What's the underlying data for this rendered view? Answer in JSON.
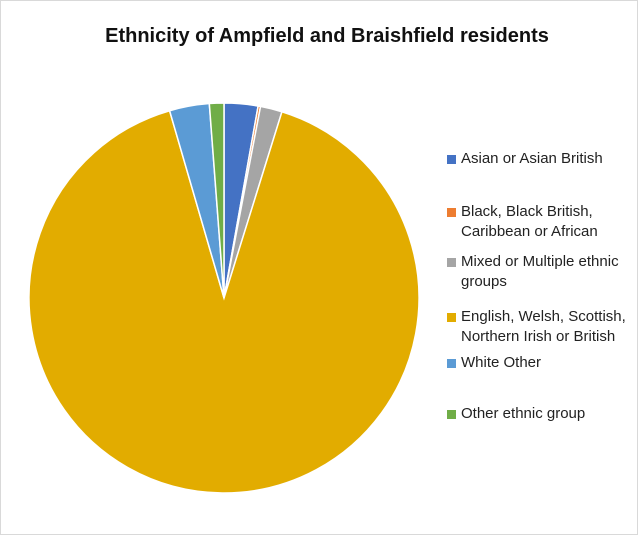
{
  "chart_data": {
    "type": "pie",
    "title": "Ethnicity of Ampfield and Braishfield residents",
    "legend_position": "right",
    "categories": [
      "Asian or Asian British",
      "Black, Black British, Caribbean or African",
      "Mixed or Multiple ethnic groups",
      " English, Welsh, Scottish, Northern Irish or British",
      "White Other",
      "Other ethnic group"
    ],
    "values": [
      2.8,
      0.2,
      1.8,
      90.7,
      3.3,
      1.2
    ],
    "colors": [
      "#4472c4",
      "#ed7d31",
      "#a5a5a5",
      "#e2ac00",
      "#5b9bd5",
      "#70ad47"
    ]
  }
}
